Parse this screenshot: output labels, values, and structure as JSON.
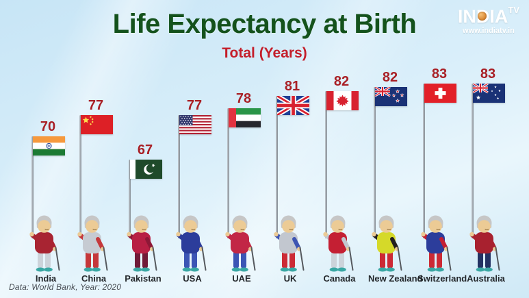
{
  "header": {
    "title": "Life Expectancy at Birth",
    "subtitle": "Total (Years)"
  },
  "logo": {
    "brand_prefix": "IN",
    "brand_d": "D",
    "brand_suffix": "IA",
    "brand_sup": "TV",
    "website": "www.indiatv.in"
  },
  "source_note": "Data: World Bank, Year: 2020",
  "chart_data": {
    "type": "bar",
    "variant": "pictorial-infographic-flag-poles",
    "title": "Life Expectancy at Birth",
    "subtitle": "Total (Years)",
    "unit": "years",
    "categories": [
      "India",
      "China",
      "Pakistan",
      "USA",
      "UAE",
      "UK",
      "Canada",
      "New Zealand",
      "Switzerland",
      "Australia"
    ],
    "values": [
      70,
      77,
      67,
      77,
      78,
      81,
      82,
      82,
      83,
      83
    ],
    "flag_icons": [
      "india-flag-icon",
      "china-flag-icon",
      "pakistan-flag-icon",
      "usa-flag-icon",
      "uae-flag-icon",
      "uk-flag-icon",
      "canada-flag-icon",
      "new-zealand-flag-icon",
      "switzerland-flag-icon",
      "australia-flag-icon"
    ],
    "value_labels_shown": true,
    "legend": "none",
    "grid": "off",
    "value_range": [
      67,
      83
    ],
    "source": "Data: World Bank, Year: 2020"
  },
  "colors": {
    "title_green": "#14521c",
    "subtitle_red": "#c41e2a",
    "value_red": "#a92026",
    "background_blue": "#cfe9f7",
    "label_dark": "#24282c"
  }
}
